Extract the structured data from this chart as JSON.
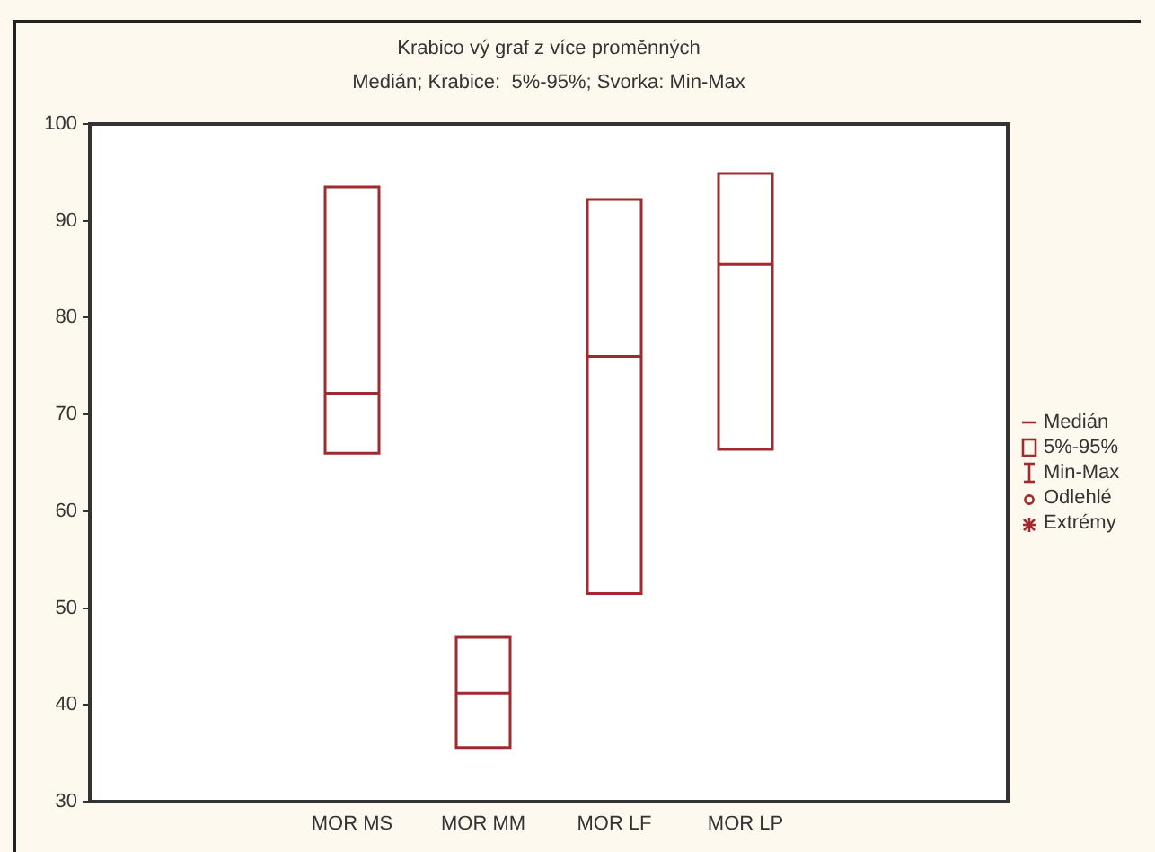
{
  "chart_data": {
    "type": "box",
    "title": "Krabico vý graf z více proměnných",
    "subtitle": "Medián; Krabice:  5%-95%; Svorka: Min-Max",
    "categories": [
      null,
      null,
      "MOR MS",
      "MOR MM",
      "MOR LF",
      "MOR LP",
      null,
      null
    ],
    "boxes": [
      null,
      null,
      {
        "low": 66,
        "q1": 66,
        "median": 72.2,
        "q3": 93.5,
        "high": 93.5
      },
      {
        "low": 35.6,
        "q1": 35.6,
        "median": 41.2,
        "q3": 47,
        "high": 47
      },
      {
        "low": 51.5,
        "q1": 51.5,
        "median": 76,
        "q3": 92.2,
        "high": 92.2
      },
      {
        "low": 66.4,
        "q1": 66.4,
        "median": 85.5,
        "q3": 94.9,
        "high": 94.9
      },
      null,
      null
    ],
    "color": "#a02a2e",
    "ylim": [
      30,
      100
    ],
    "yticks": [
      30,
      40,
      50,
      60,
      70,
      80,
      90,
      100
    ],
    "grid": false,
    "annotations": [
      "Medián",
      "5%-95%",
      "Min-Max",
      "Odlehlé",
      "Extrémy"
    ]
  }
}
